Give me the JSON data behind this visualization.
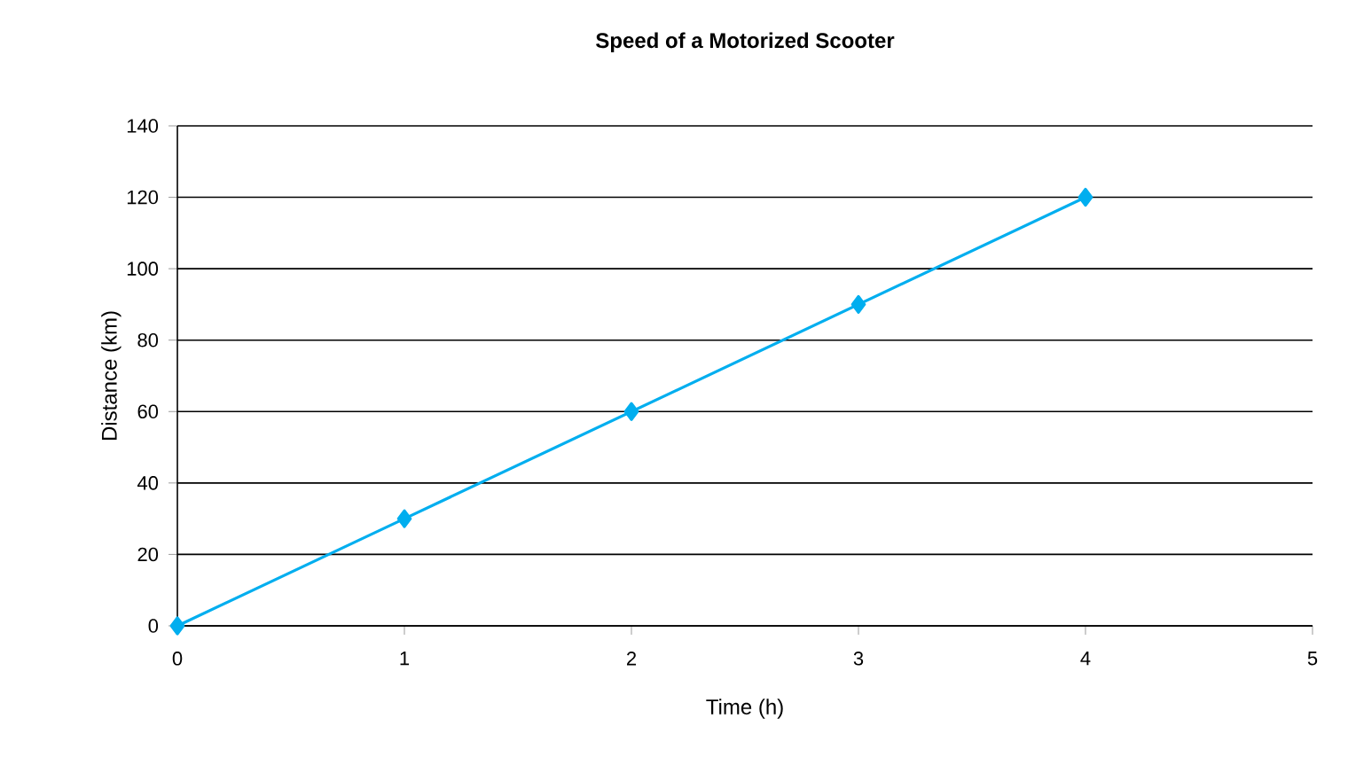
{
  "chart_data": {
    "type": "line",
    "title": "Speed of a Motorized Scooter",
    "xlabel": "Time (h)",
    "ylabel": "Distance (km)",
    "x": [
      0,
      1,
      2,
      3,
      4
    ],
    "series": [
      {
        "color": "#00aeef",
        "values": [
          0,
          30,
          60,
          90,
          120
        ]
      }
    ],
    "xlim": [
      0,
      5
    ],
    "xticks": [
      0,
      1,
      2,
      3,
      4,
      5
    ],
    "ylim": [
      0,
      140
    ],
    "yticks": [
      0,
      20,
      40,
      60,
      80,
      100,
      120,
      140
    ],
    "grid": "y",
    "marker": "diamond",
    "line_style": "solid"
  }
}
